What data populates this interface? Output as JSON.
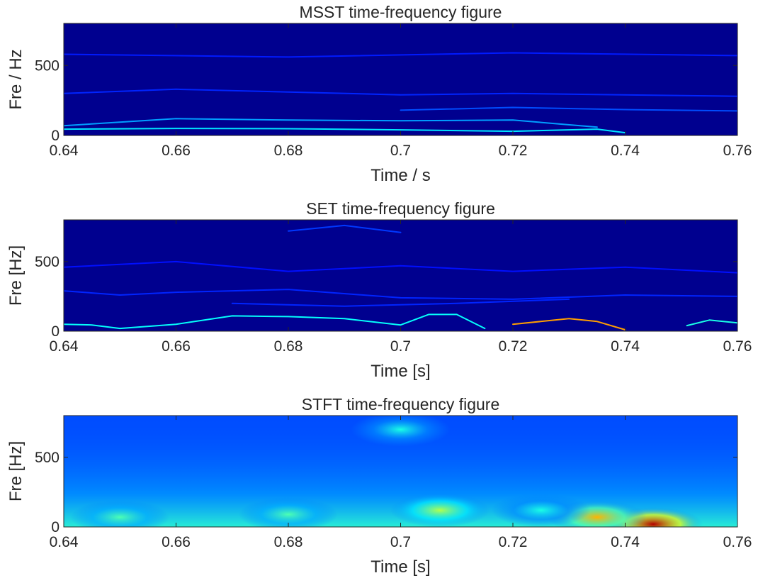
{
  "chart_data": [
    {
      "type": "heatmap",
      "title": "MSST time-frequency figure",
      "xlabel": "Time / s",
      "ylabel": "Fre / Hz",
      "xlim": [
        0.64,
        0.76
      ],
      "ylim": [
        0,
        800
      ],
      "xticks": [
        0.64,
        0.66,
        0.68,
        0.7,
        0.72,
        0.74,
        0.76
      ],
      "xtick_labels": [
        "0.64",
        "0.66",
        "0.68",
        "0.7",
        "0.72",
        "0.74",
        "0.76"
      ],
      "yticks": [
        0,
        500
      ],
      "ytick_labels": [
        "0",
        "500"
      ],
      "colormap": "jet",
      "background_color": "#00008f",
      "ridges": [
        {
          "intensity": 0.35,
          "points": [
            [
              0.64,
              45
            ],
            [
              0.66,
              50
            ],
            [
              0.68,
              48
            ],
            [
              0.7,
              40
            ],
            [
              0.72,
              30
            ],
            [
              0.735,
              45
            ],
            [
              0.74,
              20
            ]
          ]
        },
        {
          "intensity": 0.28,
          "points": [
            [
              0.64,
              70
            ],
            [
              0.66,
              120
            ],
            [
              0.68,
              110
            ],
            [
              0.7,
              105
            ],
            [
              0.72,
              110
            ],
            [
              0.735,
              60
            ]
          ]
        },
        {
          "intensity": 0.2,
          "points": [
            [
              0.7,
              180
            ],
            [
              0.72,
              200
            ],
            [
              0.74,
              185
            ],
            [
              0.76,
              175
            ]
          ]
        },
        {
          "intensity": 0.16,
          "points": [
            [
              0.64,
              300
            ],
            [
              0.66,
              330
            ],
            [
              0.68,
              310
            ],
            [
              0.7,
              290
            ],
            [
              0.72,
              300
            ],
            [
              0.76,
              280
            ]
          ]
        },
        {
          "intensity": 0.15,
          "points": [
            [
              0.64,
              580
            ],
            [
              0.68,
              560
            ],
            [
              0.72,
              590
            ],
            [
              0.76,
              570
            ]
          ]
        }
      ]
    },
    {
      "type": "heatmap",
      "title": "SET time-frequency figure",
      "xlabel": "Time [s]",
      "ylabel": "Fre [Hz]",
      "xlim": [
        0.64,
        0.76
      ],
      "ylim": [
        0,
        800
      ],
      "xticks": [
        0.64,
        0.66,
        0.68,
        0.7,
        0.72,
        0.74,
        0.76
      ],
      "xtick_labels": [
        "0.64",
        "0.66",
        "0.68",
        "0.7",
        "0.72",
        "0.74",
        "0.76"
      ],
      "yticks": [
        0,
        500
      ],
      "ytick_labels": [
        "0",
        "500"
      ],
      "colormap": "jet",
      "background_color": "#00008f",
      "ridges": [
        {
          "intensity": 0.38,
          "points": [
            [
              0.64,
              50
            ],
            [
              0.645,
              45
            ],
            [
              0.65,
              20
            ],
            [
              0.66,
              50
            ],
            [
              0.67,
              110
            ],
            [
              0.68,
              105
            ],
            [
              0.69,
              90
            ],
            [
              0.7,
              45
            ],
            [
              0.705,
              120
            ],
            [
              0.71,
              120
            ],
            [
              0.715,
              20
            ]
          ]
        },
        {
          "intensity": 0.72,
          "points": [
            [
              0.72,
              50
            ],
            [
              0.73,
              90
            ],
            [
              0.735,
              70
            ],
            [
              0.74,
              10
            ]
          ]
        },
        {
          "intensity": 0.4,
          "points": [
            [
              0.751,
              40
            ],
            [
              0.755,
              80
            ],
            [
              0.76,
              60
            ]
          ]
        },
        {
          "intensity": 0.16,
          "points": [
            [
              0.64,
              290
            ],
            [
              0.65,
              260
            ],
            [
              0.66,
              280
            ],
            [
              0.68,
              300
            ],
            [
              0.7,
              240
            ],
            [
              0.72,
              230
            ],
            [
              0.74,
              260
            ],
            [
              0.76,
              250
            ]
          ]
        },
        {
          "intensity": 0.16,
          "points": [
            [
              0.67,
              200
            ],
            [
              0.69,
              180
            ],
            [
              0.71,
              200
            ],
            [
              0.73,
              230
            ]
          ]
        },
        {
          "intensity": 0.14,
          "points": [
            [
              0.64,
              460
            ],
            [
              0.66,
              500
            ],
            [
              0.68,
              430
            ],
            [
              0.7,
              470
            ],
            [
              0.72,
              430
            ],
            [
              0.74,
              460
            ],
            [
              0.76,
              420
            ]
          ]
        },
        {
          "intensity": 0.18,
          "points": [
            [
              0.68,
              720
            ],
            [
              0.69,
              760
            ],
            [
              0.7,
              710
            ]
          ]
        }
      ]
    },
    {
      "type": "heatmap",
      "title": "STFT time-frequency figure",
      "xlabel": "Time [s]",
      "ylabel": "Fre [Hz]",
      "xlim": [
        0.64,
        0.76
      ],
      "ylim": [
        0,
        800
      ],
      "xticks": [
        0.64,
        0.66,
        0.68,
        0.7,
        0.72,
        0.74,
        0.76
      ],
      "xtick_labels": [
        "0.64",
        "0.66",
        "0.68",
        "0.7",
        "0.72",
        "0.74",
        "0.76"
      ],
      "yticks": [
        0,
        500
      ],
      "ytick_labels": [
        "0",
        "500"
      ],
      "colormap": "jet",
      "hotspots": [
        {
          "x": 0.745,
          "y": 20,
          "intensity": 0.95
        },
        {
          "x": 0.735,
          "y": 70,
          "intensity": 0.7
        },
        {
          "x": 0.707,
          "y": 120,
          "intensity": 0.55
        },
        {
          "x": 0.68,
          "y": 90,
          "intensity": 0.45
        },
        {
          "x": 0.65,
          "y": 70,
          "intensity": 0.45
        },
        {
          "x": 0.725,
          "y": 120,
          "intensity": 0.4
        },
        {
          "x": 0.7,
          "y": 700,
          "intensity": 0.4
        }
      ]
    }
  ]
}
